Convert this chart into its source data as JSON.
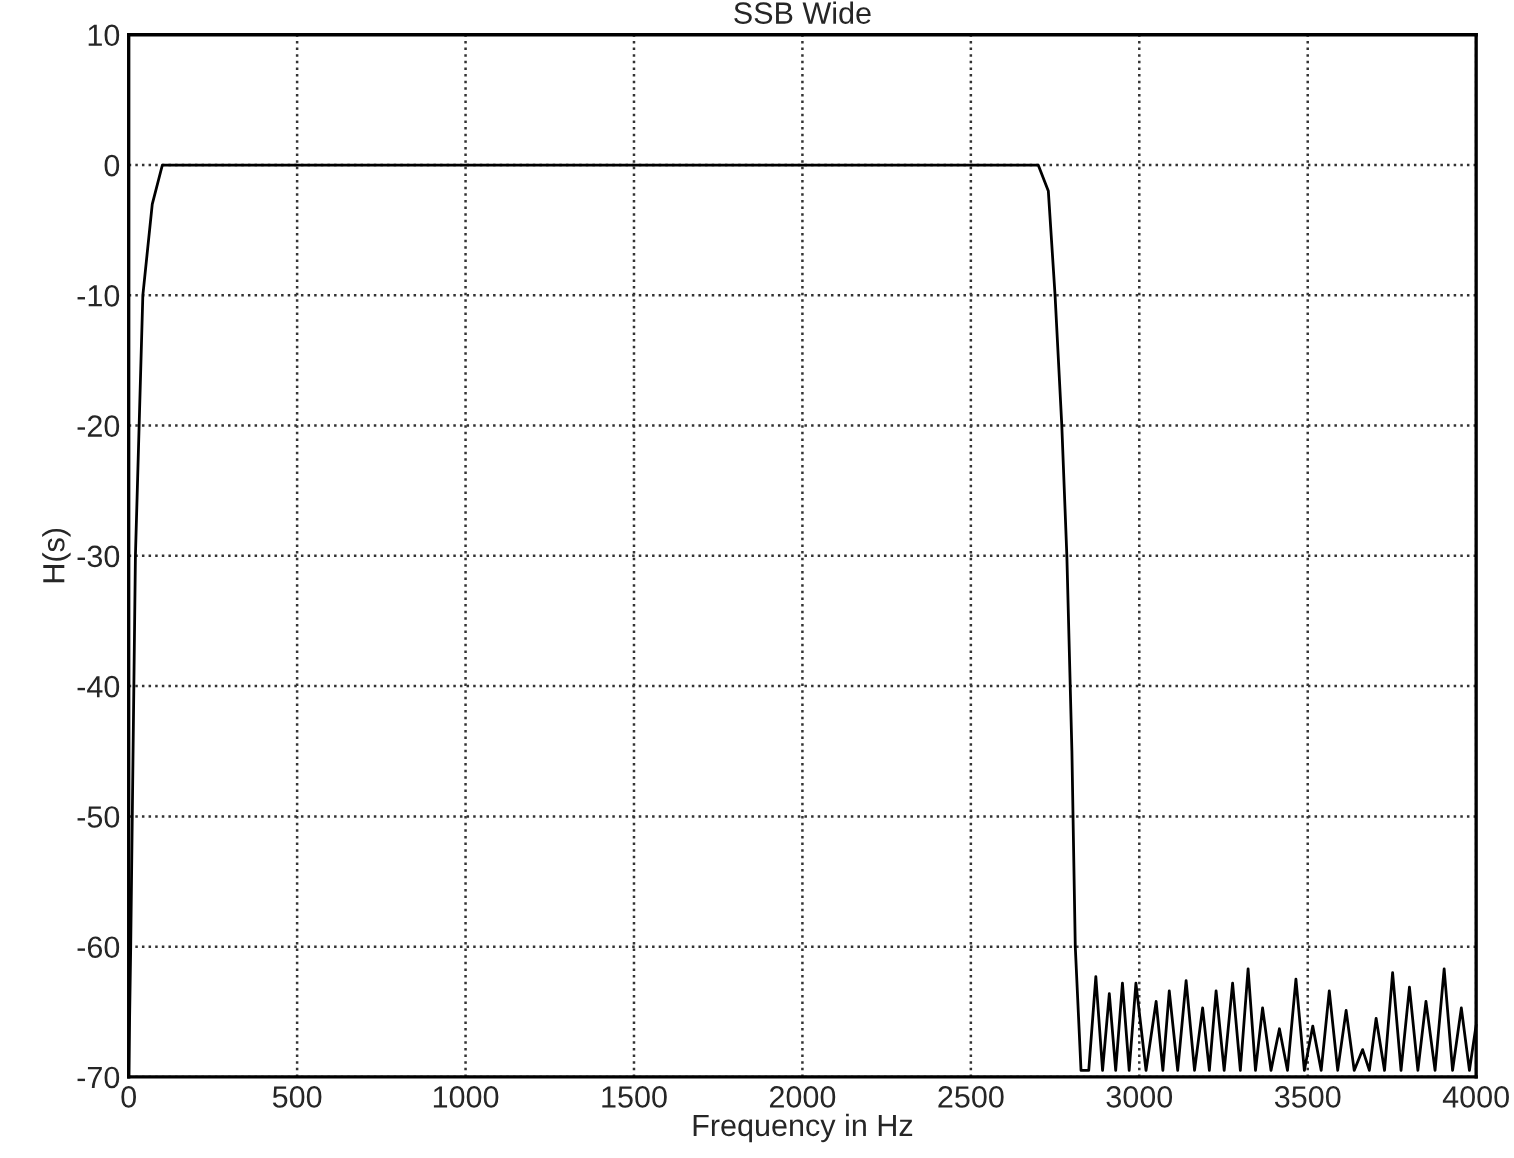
{
  "chart_data": {
    "type": "line",
    "title": "SSB Wide",
    "xlabel": "Frequency in Hz",
    "ylabel": "H(s)",
    "xlim": [
      0,
      4000
    ],
    "xticks": [
      0,
      500,
      1000,
      1500,
      2000,
      2500,
      3000,
      3500,
      4000
    ],
    "ylim": [
      -70,
      10
    ],
    "yticks": [
      -70,
      -60,
      -50,
      -40,
      -30,
      -20,
      -10,
      0,
      10
    ],
    "grid": true,
    "marker": "none",
    "line_style": "solid",
    "series": [
      {
        "color": "#000000",
        "x": [
          0,
          6,
          20,
          42,
          70,
          100,
          2700,
          2730,
          2750,
          2770,
          2785,
          2800,
          2810,
          2827,
          2850,
          2871,
          2891,
          2911,
          2930,
          2950,
          2970,
          2990,
          3020,
          3050,
          3070,
          3089,
          3114,
          3139,
          3164,
          3188,
          3208,
          3228,
          3252,
          3277,
          3300,
          3323,
          3345,
          3366,
          3391,
          3416,
          3440,
          3465,
          3490,
          3515,
          3540,
          3564,
          3589,
          3614,
          3638,
          3663,
          3683,
          3703,
          3728,
          3752,
          3777,
          3802,
          3827,
          3851,
          3878,
          3905,
          3930,
          3956,
          3980,
          4000
        ],
        "values": [
          -70,
          -60,
          -30,
          -10,
          -3,
          0,
          0,
          -2,
          -10,
          -20,
          -30,
          -45,
          -60,
          -69.5,
          -69.5,
          -62.3,
          -69.5,
          -63.6,
          -69.5,
          -62.8,
          -69.5,
          -62.8,
          -69.5,
          -64.2,
          -69.5,
          -63.4,
          -69.5,
          -62.6,
          -69.5,
          -64.7,
          -69.5,
          -63.4,
          -69.5,
          -62.8,
          -69.5,
          -61.7,
          -69.5,
          -64.7,
          -69.5,
          -66.3,
          -69.5,
          -62.5,
          -69.5,
          -66.1,
          -69.5,
          -63.4,
          -69.5,
          -64.9,
          -69.5,
          -67.9,
          -69.5,
          -65.5,
          -69.5,
          -62.0,
          -69.5,
          -63.1,
          -69.5,
          -64.2,
          -69.5,
          -61.7,
          -69.5,
          -64.7,
          -69.5,
          -66
        ]
      }
    ]
  }
}
